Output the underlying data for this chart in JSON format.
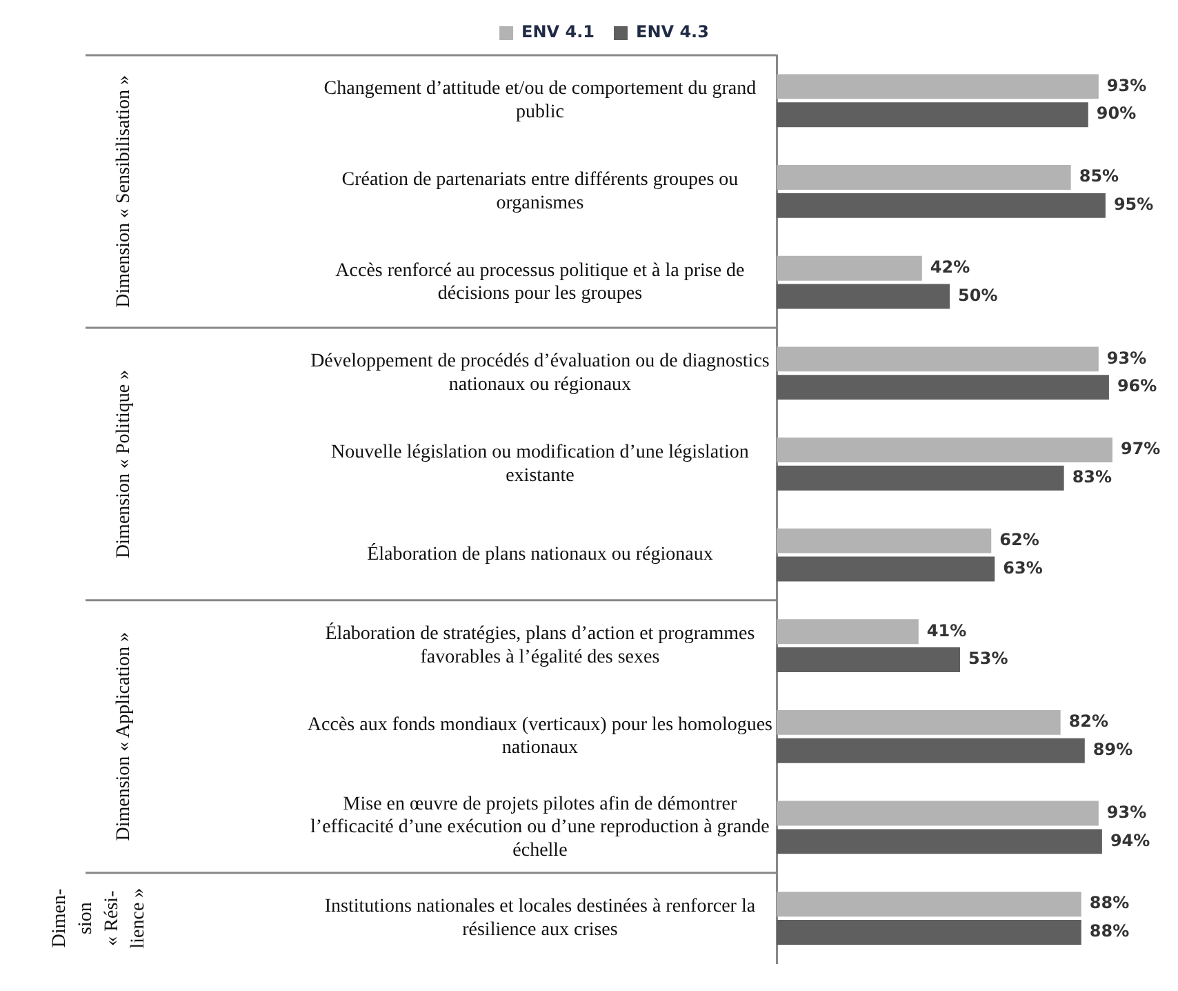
{
  "chart_data": {
    "type": "bar",
    "orientation": "horizontal",
    "legend": "top",
    "tick_labels": "y",
    "grid": false,
    "categories": [
      "Changement d’attitude et/ou de comportement du grand public",
      "Création de partenariats entre différents groupes ou organismes",
      "Accès renforcé au processus politique et à la prise de décisions pour les groupes",
      "Développement de procédés d’évaluation ou de diagnostics nationaux ou régionaux",
      "Nouvelle législation ou modification d’une législation existante",
      "Élaboration de plans nationaux ou régionaux",
      "Élaboration de stratégies, plans d’action et programmes favorables à l’égalité des sexes",
      "Accès aux fonds mondiaux (verticaux) pour les homologues nationaux",
      "Mise en œuvre de projets pilotes afin de démontrer l’efficacité d’une exécution ou d’une reproduction à grande échelle",
      "Institutions nationales et locales destinées à renforcer la résilience aux crises"
    ],
    "series": [
      {
        "name": "ENV 4.1",
        "color": "#b3b3b3",
        "values": [
          93,
          85,
          42,
          93,
          97,
          62,
          41,
          82,
          93,
          88
        ],
        "value_labels": [
          "93%",
          "85%",
          "42%",
          "93%",
          "97%",
          "62%",
          "41%",
          "82%",
          "93%",
          "88%"
        ]
      },
      {
        "name": "ENV 4.3",
        "color": "#5f5f5f",
        "values": [
          90,
          95,
          50,
          96,
          83,
          63,
          53,
          89,
          94,
          88
        ],
        "value_labels": [
          "90%",
          "95%",
          "50%",
          "96%",
          "83%",
          "63%",
          "53%",
          "89%",
          "94%",
          "88%"
        ]
      }
    ],
    "annotations": [
      "Dimension « Sensibilisation »",
      "Dimension « Politique »",
      "Dimension « Application »",
      "Dimen-\nsion\n« Rési-\nlience »"
    ]
  }
}
